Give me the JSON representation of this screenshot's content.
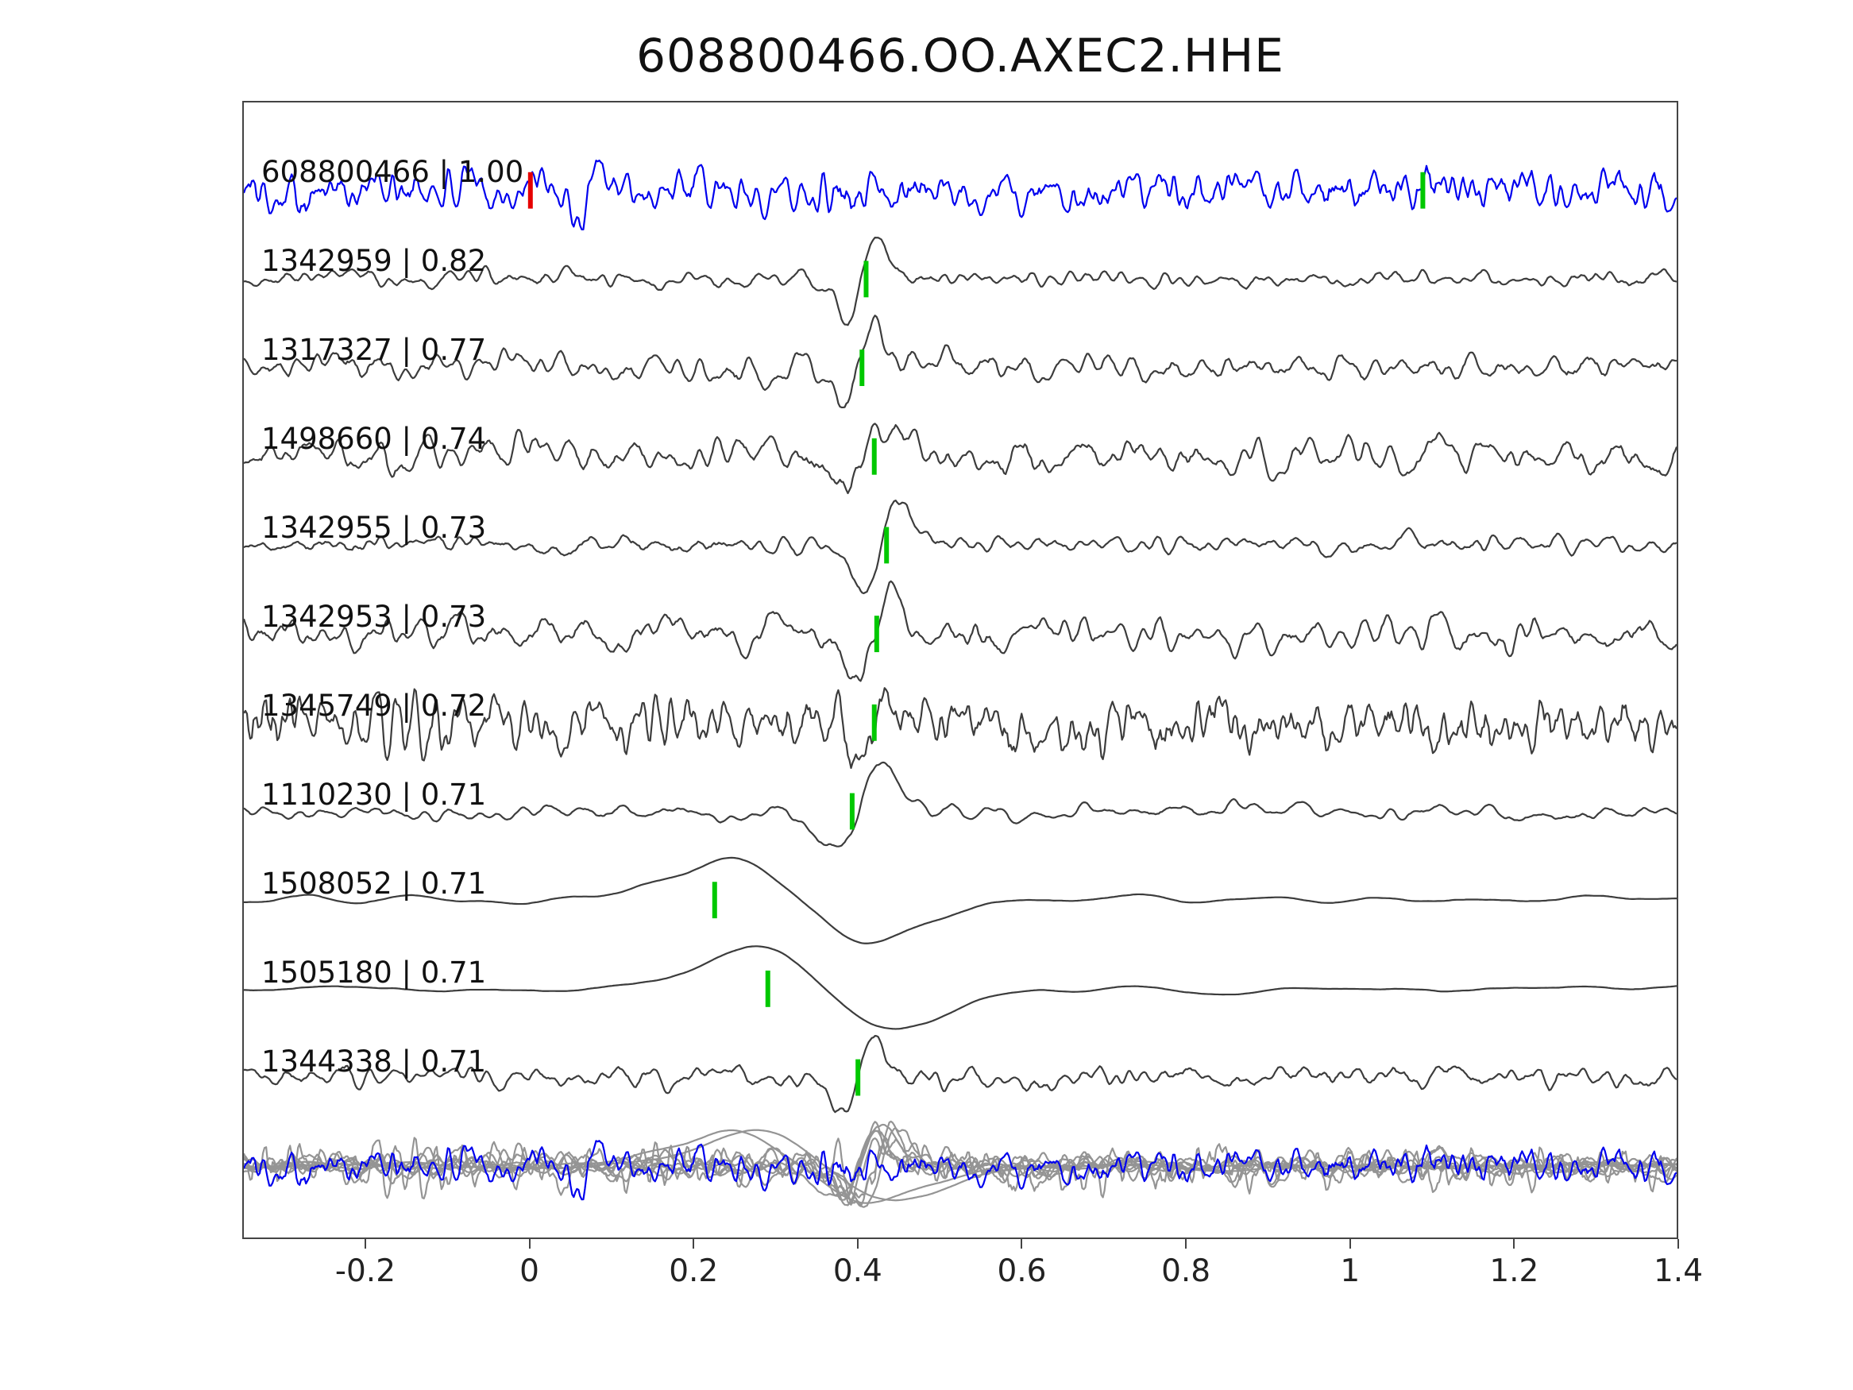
{
  "chart_data": {
    "type": "line",
    "subtype": "seismogram-correlation-stack",
    "title": "608800466.OO.AXEC2.HHE",
    "xlabel": "",
    "ylabel": "",
    "x_range": [
      -0.35,
      1.4
    ],
    "grid": false,
    "legend": "none",
    "x_ticks": [
      {
        "value": -0.2,
        "label": "-0.2"
      },
      {
        "value": 0,
        "label": "0"
      },
      {
        "value": 0.2,
        "label": "0.2"
      },
      {
        "value": 0.4,
        "label": "0.4"
      },
      {
        "value": 0.6,
        "label": "0.6"
      },
      {
        "value": 0.8,
        "label": "0.8"
      },
      {
        "value": 1,
        "label": "1"
      },
      {
        "value": 1.2,
        "label": "1.2"
      },
      {
        "value": 1.4,
        "label": "1.4"
      }
    ],
    "colors": {
      "reference": "#0000ee",
      "trace": "#3c3c3c",
      "overlay": "#949494",
      "pick": "#00c800",
      "origin": "#e60000",
      "axis": "#444444",
      "text": "#111111"
    },
    "traces": [
      {
        "id": "608800466",
        "correlation": "1.00",
        "label": "608800466 | 1.00",
        "role": "reference",
        "seed": 101,
        "noise": 0.7,
        "smooth": 1,
        "pulse": {
          "t": 0.07,
          "w": 0.012,
          "amp": 0.9,
          "sign": -1
        },
        "markers": [
          {
            "t": 0.0,
            "type": "origin"
          },
          {
            "t": 1.09,
            "type": "pick"
          }
        ]
      },
      {
        "id": "1342959",
        "correlation": "0.82",
        "label": "1342959 | 0.82",
        "role": "match",
        "seed": 202,
        "noise": 0.32,
        "smooth": 2,
        "pulse": {
          "t": 0.405,
          "w": 0.018,
          "amp": 1.0,
          "sign": -1
        },
        "markers": [
          {
            "t": 0.41,
            "type": "pick"
          }
        ]
      },
      {
        "id": "1317327",
        "correlation": "0.77",
        "label": "1317327 | 0.77",
        "role": "match",
        "seed": 303,
        "noise": 0.55,
        "smooth": 2,
        "pulse": {
          "t": 0.4,
          "w": 0.02,
          "amp": 0.9,
          "sign": -1
        },
        "markers": [
          {
            "t": 0.405,
            "type": "pick"
          }
        ]
      },
      {
        "id": "1498660",
        "correlation": "0.74",
        "label": "1498660 | 0.74",
        "role": "match",
        "seed": 404,
        "noise": 0.65,
        "smooth": 2,
        "pulse": {
          "t": 0.41,
          "w": 0.02,
          "amp": 0.85,
          "sign": -1
        },
        "markers": [
          {
            "t": 0.42,
            "type": "pick"
          }
        ]
      },
      {
        "id": "1342955",
        "correlation": "0.73",
        "label": "1342955 | 0.73",
        "role": "match",
        "seed": 505,
        "noise": 0.42,
        "smooth": 2,
        "pulse": {
          "t": 0.43,
          "w": 0.02,
          "amp": 1.1,
          "sign": -1
        },
        "markers": [
          {
            "t": 0.435,
            "type": "pick"
          }
        ]
      },
      {
        "id": "1342953",
        "correlation": "0.73",
        "label": "1342953 | 0.73",
        "role": "match",
        "seed": 606,
        "noise": 0.6,
        "smooth": 2,
        "pulse": {
          "t": 0.42,
          "w": 0.02,
          "amp": 1.0,
          "sign": -1
        },
        "markers": [
          {
            "t": 0.423,
            "type": "pick"
          }
        ]
      },
      {
        "id": "1345749",
        "correlation": "0.72",
        "label": "1345749 | 0.72",
        "role": "match",
        "seed": 707,
        "noise": 0.92,
        "smooth": 1,
        "pulse": {
          "t": 0.42,
          "w": 0.015,
          "amp": 0.7,
          "sign": -1
        },
        "markers": [
          {
            "t": 0.42,
            "type": "pick"
          }
        ]
      },
      {
        "id": "1110230",
        "correlation": "0.71",
        "label": "1110230 | 0.71",
        "role": "match",
        "seed": 808,
        "noise": 0.3,
        "smooth": 3,
        "pulse": {
          "t": 0.4,
          "w": 0.03,
          "amp": 1.1,
          "sign": -1
        },
        "markers": [
          {
            "t": 0.393,
            "type": "pick"
          }
        ]
      },
      {
        "id": "1508052",
        "correlation": "0.71",
        "label": "1508052 | 0.71",
        "role": "match",
        "seed": 909,
        "noise": 0.14,
        "smooth": 14,
        "pulse": {
          "t": 0.33,
          "w": 0.085,
          "amp": 1.0,
          "sign": 1
        },
        "markers": [
          {
            "t": 0.225,
            "type": "pick"
          }
        ]
      },
      {
        "id": "1505180",
        "correlation": "0.71",
        "label": "1505180 | 0.71",
        "role": "match",
        "seed": 1010,
        "noise": 0.14,
        "smooth": 14,
        "pulse": {
          "t": 0.36,
          "w": 0.085,
          "amp": 1.0,
          "sign": 1
        },
        "markers": [
          {
            "t": 0.29,
            "type": "pick"
          }
        ]
      },
      {
        "id": "1344338",
        "correlation": "0.71",
        "label": "1344338 | 0.71",
        "role": "match",
        "seed": 1111,
        "noise": 0.38,
        "smooth": 2,
        "pulse": {
          "t": 0.4,
          "w": 0.02,
          "amp": 0.9,
          "sign": -1
        },
        "markers": [
          {
            "t": 0.4,
            "type": "pick"
          }
        ]
      }
    ],
    "overlay": {
      "scale": 0.85,
      "description": "all matched traces superimposed in gray with reference in blue"
    }
  }
}
